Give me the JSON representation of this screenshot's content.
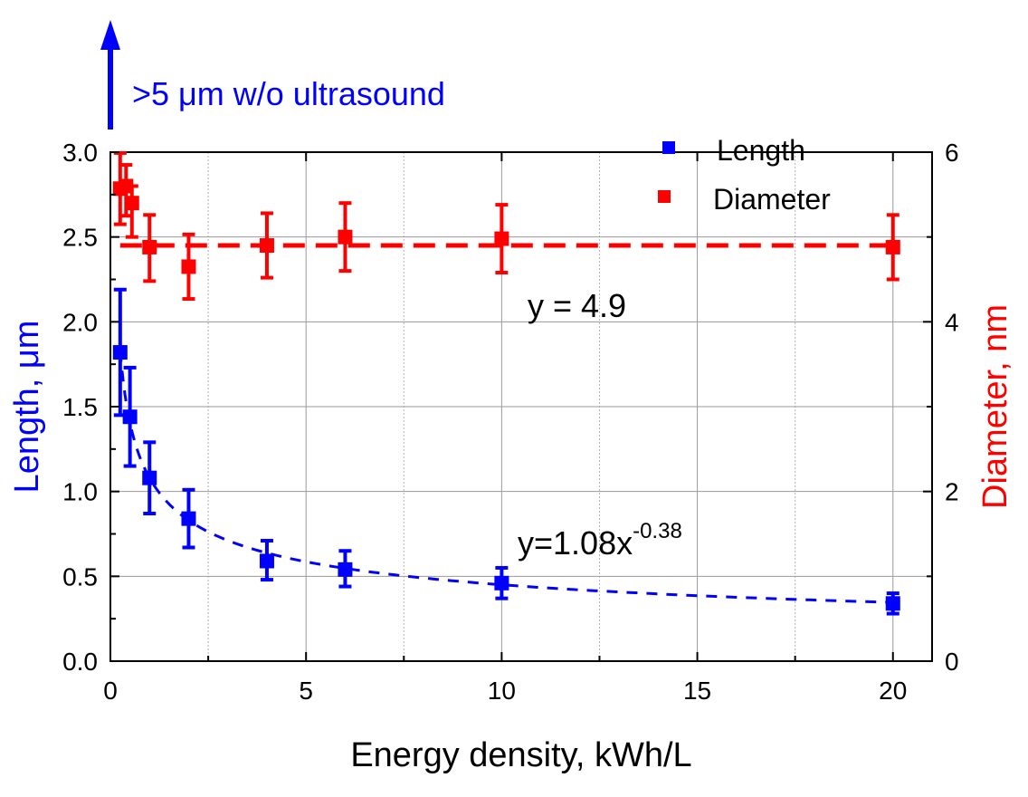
{
  "chart_data": {
    "type": "scatter",
    "xlabel": "Energy density, kWh/L",
    "ylabel_left": "Length, μm",
    "ylabel_right": "Diameter, nm",
    "xlim": [
      0,
      21
    ],
    "ylim_left": [
      0,
      3.0
    ],
    "ylim_right": [
      0,
      6
    ],
    "x_ticks": [
      "0",
      "5",
      "10",
      "15",
      "20"
    ],
    "y_ticks_left": [
      "0.0",
      "0.5",
      "1.0",
      "1.5",
      "2.0",
      "2.5",
      "3.0"
    ],
    "y_ticks_right": [
      "0",
      "2",
      "4",
      "6"
    ],
    "grid": true,
    "legend_position": "top-right",
    "annotation_top": ">5 μm w/o ultrasound",
    "series": [
      {
        "name": "Length",
        "axis": "left",
        "color": "#0000ff",
        "x": [
          0.25,
          0.5,
          1,
          2,
          4,
          6,
          10,
          20
        ],
        "y": [
          1.82,
          1.44,
          1.08,
          0.84,
          0.59,
          0.54,
          0.46,
          0.34
        ],
        "err_lo": [
          0.37,
          0.29,
          0.21,
          0.17,
          0.11,
          0.1,
          0.09,
          0.06
        ],
        "err_hi": [
          0.37,
          0.29,
          0.21,
          0.17,
          0.12,
          0.11,
          0.09,
          0.06
        ]
      },
      {
        "name": "Diameter",
        "axis": "right",
        "color": "#ff0000",
        "x": [
          0.25,
          0.4,
          0.55,
          1,
          2,
          4,
          6,
          10,
          20
        ],
        "y": [
          5.57,
          5.6,
          5.4,
          4.88,
          4.65,
          4.9,
          5.0,
          4.98,
          4.88
        ],
        "err_lo": [
          0.42,
          0.35,
          0.4,
          0.4,
          0.38,
          0.38,
          0.4,
          0.4,
          0.38
        ],
        "err_hi": [
          0.42,
          0.25,
          0.2,
          0.38,
          0.38,
          0.38,
          0.4,
          0.4,
          0.38
        ]
      }
    ],
    "fits": [
      {
        "axis": "left",
        "color": "#0000ff",
        "type": "power",
        "a": 1.08,
        "b": -0.38,
        "x_range": [
          0.25,
          20
        ],
        "label": "y=1.08x",
        "label_sup": "-0.38"
      },
      {
        "axis": "right",
        "color": "#ff0000",
        "type": "constant",
        "value": 4.9,
        "x_range": [
          0.25,
          20
        ],
        "label": "y = 4.9"
      }
    ]
  }
}
